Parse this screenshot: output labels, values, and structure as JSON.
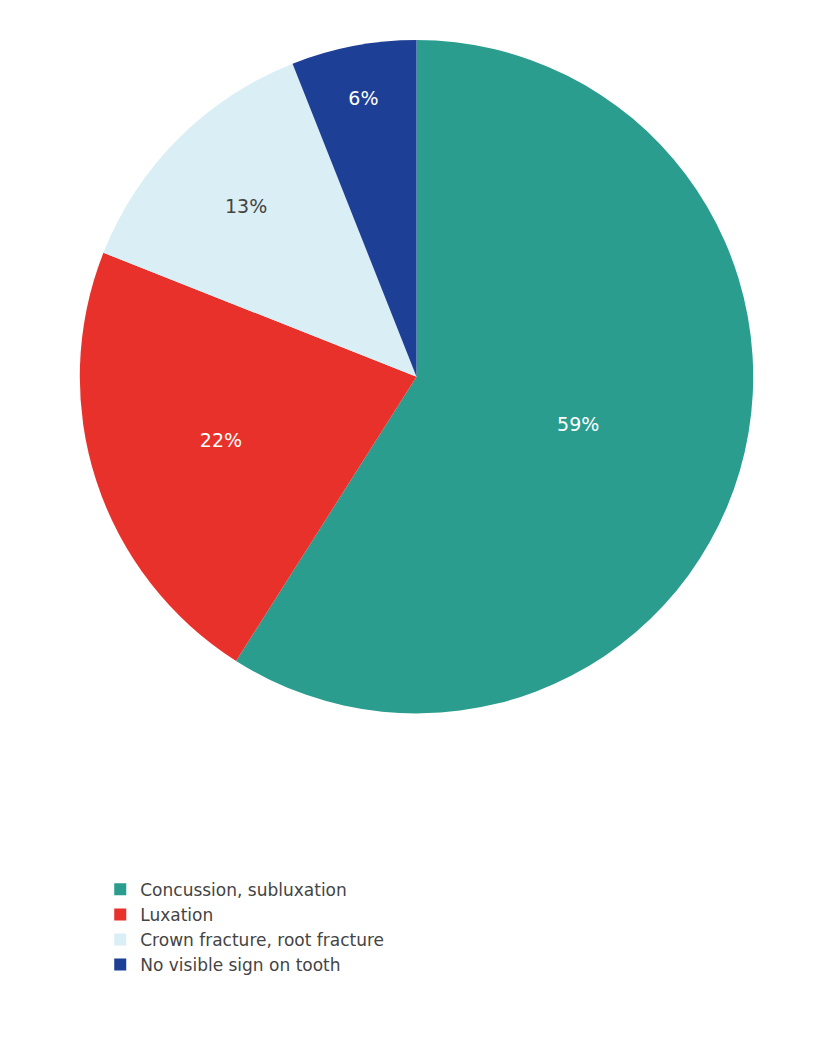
{
  "chart_data": {
    "type": "pie",
    "categories": [
      "Concussion, subluxation",
      "Luxation",
      "Crown fracture, root fracture",
      "No visible sign on tooth"
    ],
    "values": [
      59,
      22,
      13,
      6
    ],
    "value_labels": [
      "59%",
      "22%",
      "13%",
      "6%"
    ],
    "colors": [
      "#2a9d8f",
      "#e8312a",
      "#daeef5",
      "#1e3f96"
    ],
    "data_labels": true,
    "legend": "lower left"
  }
}
